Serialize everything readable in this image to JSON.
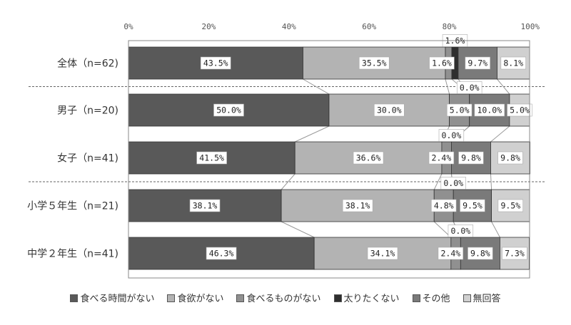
{
  "chart_data": {
    "type": "bar",
    "orientation": "horizontal",
    "stacked": "percent",
    "categories": [
      "全体（n=62)",
      "男子（n=20)",
      "女子（n=41)",
      "小学５年生（n=21)",
      "中学２年生（n=41)"
    ],
    "x_ticks": [
      "0%",
      "20%",
      "40%",
      "60%",
      "80%",
      "100%"
    ],
    "xlim": [
      0,
      100
    ],
    "grid": false,
    "legend_position": "bottom",
    "series": [
      {
        "name": "食べる時間がない",
        "values": [
          43.5,
          50.0,
          41.5,
          38.1,
          46.3
        ],
        "labels": [
          "43.5%",
          "50.0%",
          "41.5%",
          "38.1%",
          "46.3%"
        ],
        "color": "#595959"
      },
      {
        "name": "食欲がない",
        "values": [
          35.5,
          30.0,
          36.6,
          38.1,
          34.1
        ],
        "labels": [
          "35.5%",
          "30.0%",
          "36.6%",
          "38.1%",
          "34.1%"
        ],
        "color": "#b3b3b3"
      },
      {
        "name": "食べるものがない",
        "values": [
          1.6,
          5.0,
          2.4,
          4.8,
          2.4
        ],
        "labels": [
          "1.6%",
          "5.0%",
          "2.4%",
          "4.8%",
          "2.4%"
        ],
        "color": "#909090"
      },
      {
        "name": "太りたくない",
        "values": [
          1.6,
          0.0,
          0.0,
          0.0,
          0.0
        ],
        "labels": [
          "1.6%",
          "0.0%",
          "0.0%",
          "0.0%",
          "0.0%"
        ],
        "color": "#2e2e2e"
      },
      {
        "name": "その他",
        "values": [
          9.7,
          10.0,
          9.8,
          9.5,
          9.8
        ],
        "labels": [
          "9.7%",
          "10.0%",
          "9.8%",
          "9.5%",
          "9.8%"
        ],
        "color": "#7a7a7a"
      },
      {
        "name": "無回答",
        "values": [
          8.1,
          5.0,
          9.8,
          9.5,
          7.3
        ],
        "labels": [
          "8.1%",
          "5.0%",
          "9.8%",
          "9.5%",
          "7.3%"
        ],
        "color": "#d0d0d0"
      }
    ],
    "group_separators_after": [
      0,
      2
    ]
  }
}
